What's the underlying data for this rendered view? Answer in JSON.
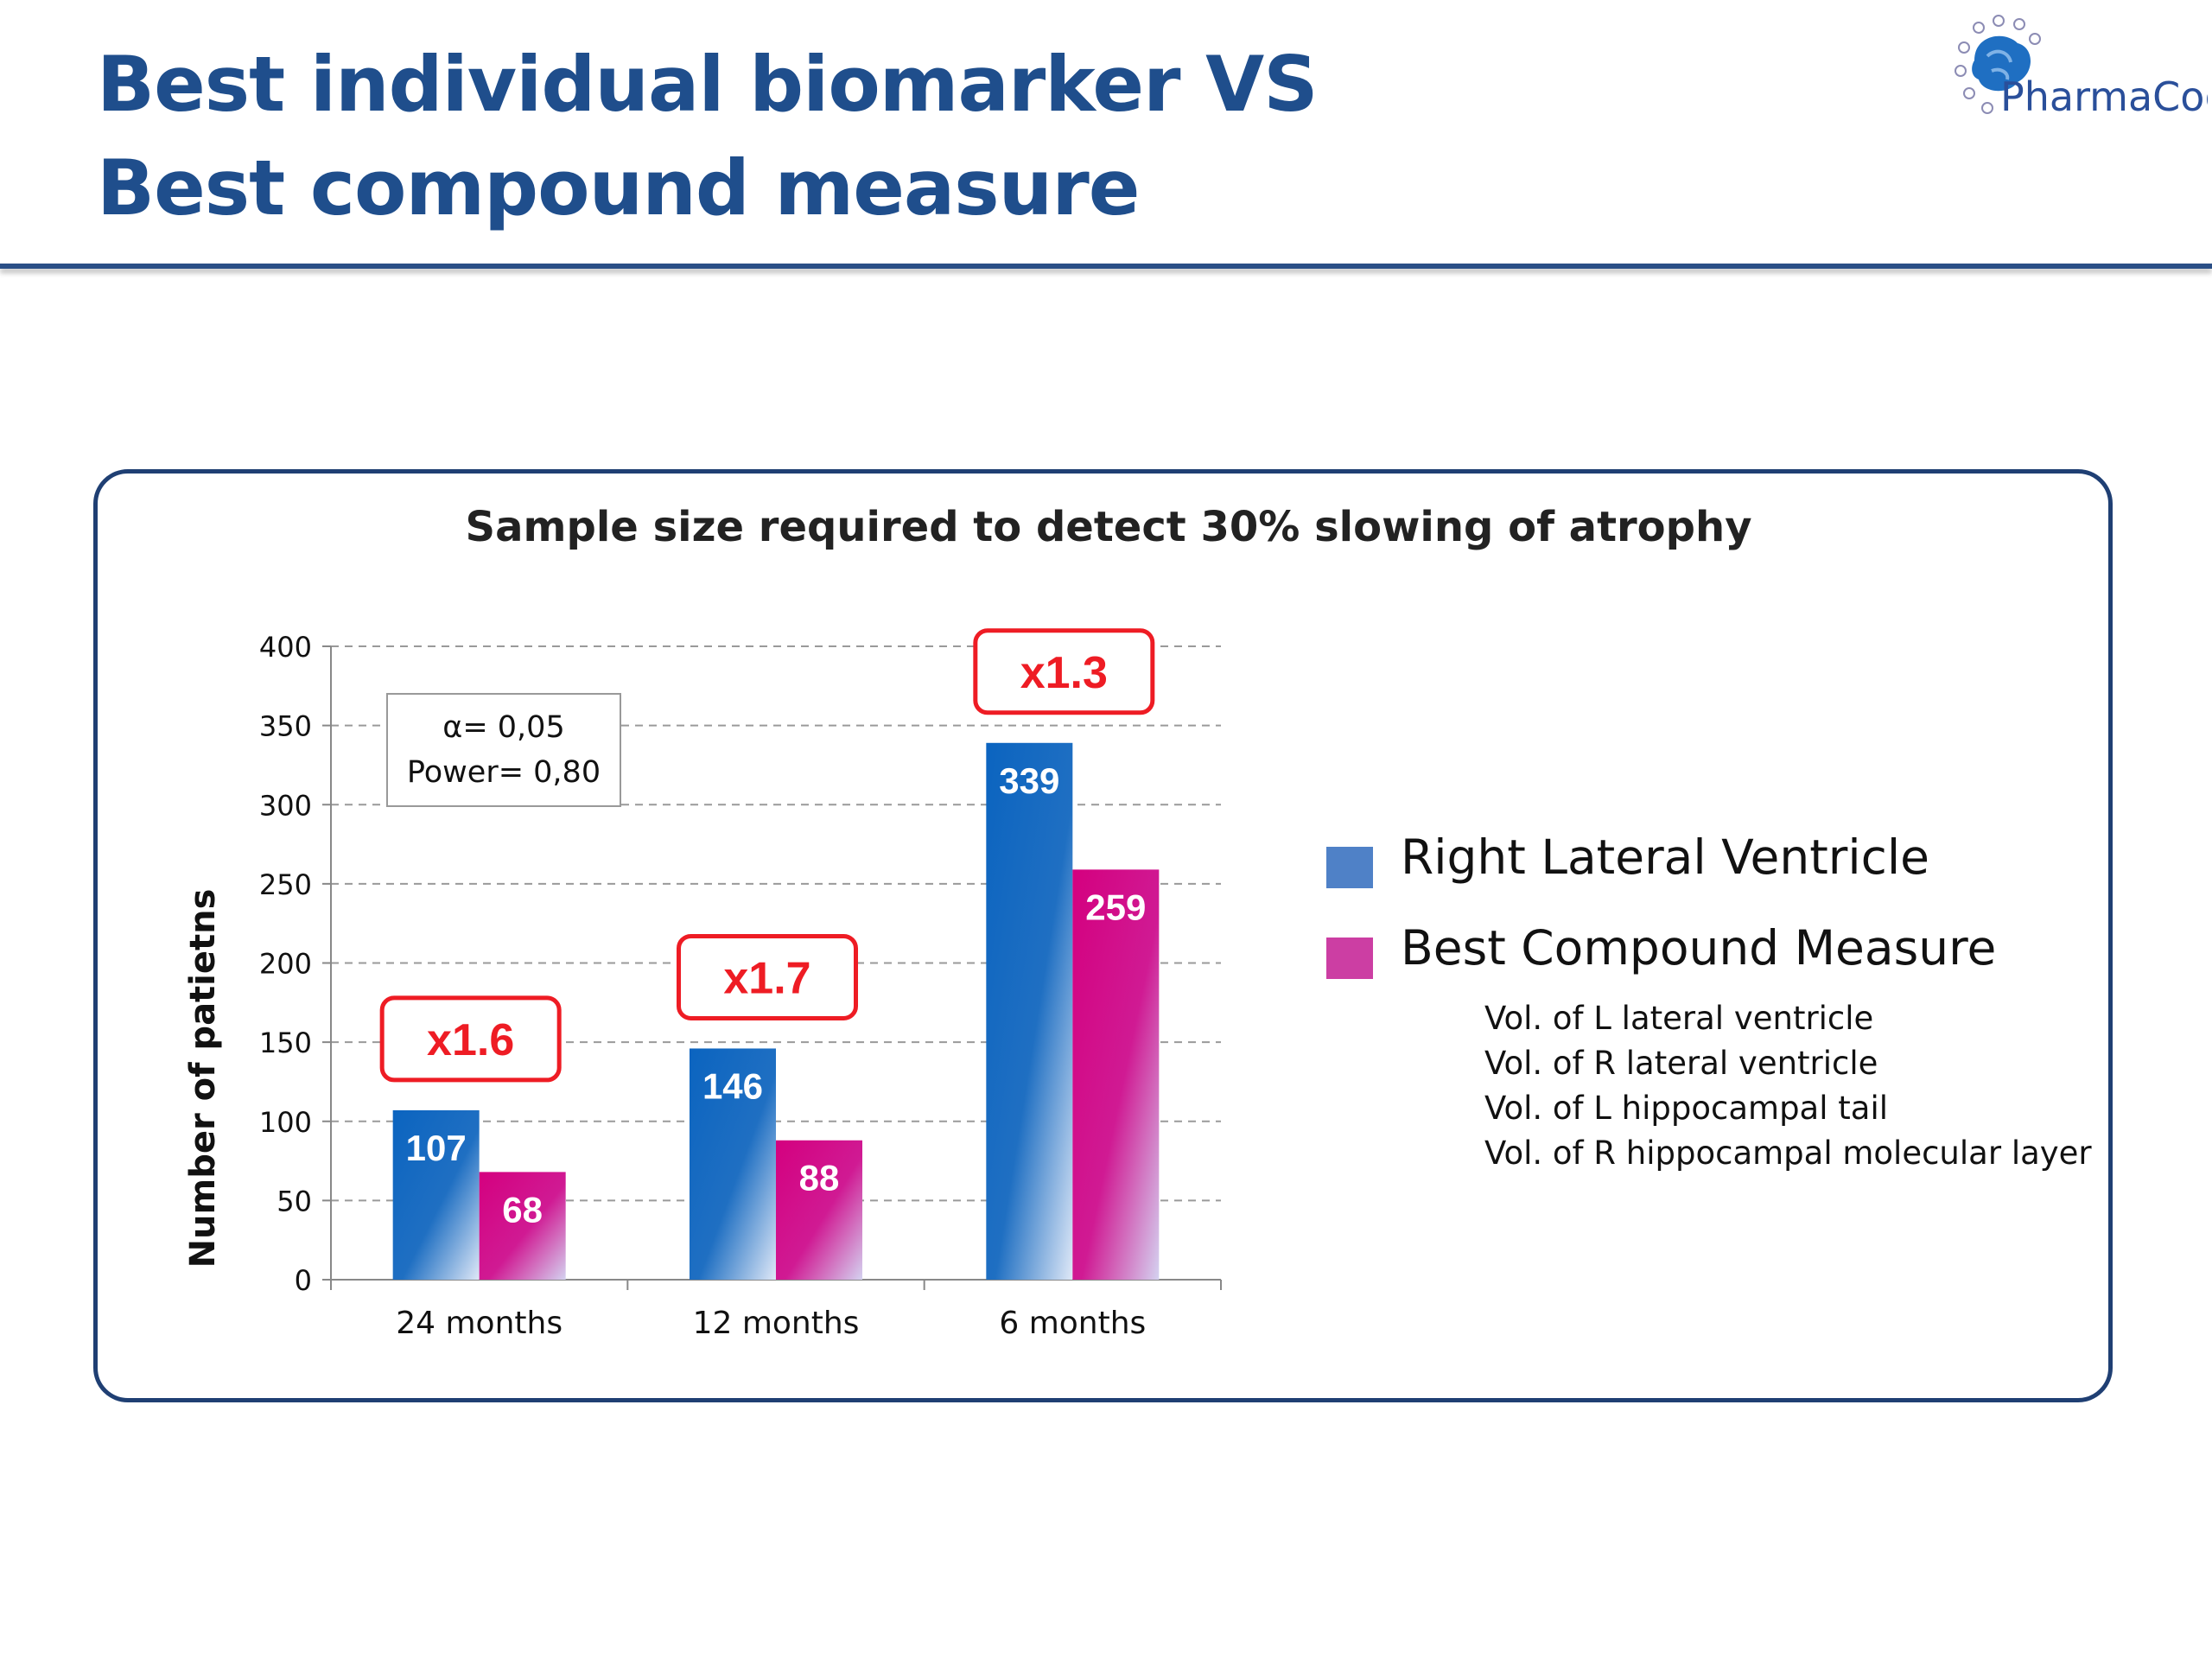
{
  "slide": {
    "title_line1": "Best individual biomarker VS",
    "title_line2": "Best compound measure",
    "logo_text": "PharmaCog"
  },
  "chart_data": {
    "type": "bar",
    "title": "Sample size required to detect 30% slowing of atrophy",
    "ylabel": "Number of patietns",
    "xlabel": "",
    "categories": [
      "24 months",
      "12 months",
      "6 months"
    ],
    "series": [
      {
        "name": "Right Lateral Ventricle",
        "values": [
          107,
          146,
          339
        ],
        "color": "#1f6fc2"
      },
      {
        "name": "Best Compound Measure",
        "values": [
          68,
          88,
          259
        ],
        "color": "#d01a93"
      }
    ],
    "ylim": [
      0,
      400
    ],
    "yticks": [
      0,
      50,
      100,
      150,
      200,
      250,
      300,
      350,
      400
    ],
    "grid": true,
    "ratios": [
      "x1.6",
      "x1.7",
      "x1.3"
    ],
    "annotation_lines": [
      "α= 0,05",
      "Power= 0,80"
    ],
    "legend_position": "right",
    "compound_components": [
      "Vol. of L lateral ventricle",
      "Vol. of R lateral ventricle",
      "Vol. of L hippocampal tail",
      "Vol. of R hippocampal molecular layer"
    ]
  }
}
